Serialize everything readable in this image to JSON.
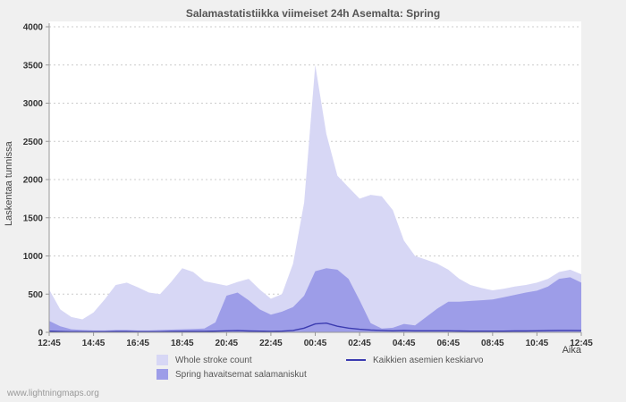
{
  "page": {
    "watermark": "www.lightningmaps.org"
  },
  "chart_data": {
    "type": "area",
    "title": "Salamastatistiikka viimeiset 24h Asemalta: Spring",
    "xlabel": "Aika",
    "ylabel": "Laskentaa tunnissa",
    "ylim": [
      0,
      4000
    ],
    "y_ticks": [
      0,
      500,
      1000,
      1500,
      2000,
      2500,
      3000,
      3500,
      4000
    ],
    "grid": "horizontal-dashed",
    "legend_position": "bottom",
    "x": [
      0,
      0.5,
      1,
      1.5,
      2,
      2.5,
      3,
      3.5,
      4,
      4.5,
      5,
      5.5,
      6,
      6.5,
      7,
      7.5,
      8,
      8.5,
      9,
      9.5,
      10,
      10.5,
      11,
      11.5,
      12,
      12.5,
      13,
      13.5,
      14,
      14.5,
      15,
      15.5,
      16,
      16.5,
      17,
      17.5,
      18,
      18.5,
      19,
      19.5,
      20,
      20.5,
      21,
      21.5,
      22,
      22.5,
      23,
      23.5,
      24
    ],
    "x_tick_hours": [
      0,
      2,
      4,
      6,
      8,
      10,
      12,
      14,
      16,
      18,
      20,
      22,
      24
    ],
    "x_tick_labels": [
      "12:45",
      "14:45",
      "16:45",
      "18:45",
      "20:45",
      "22:45",
      "00:45",
      "02:45",
      "04:45",
      "06:45",
      "08:45",
      "10:45",
      "12:45"
    ],
    "colors": {
      "page_background": "#f0f0f0",
      "plot_background": "#ffffff",
      "grid": "#cccccc",
      "axis": "#999999",
      "text": "#555555"
    },
    "series": [
      {
        "id": "whole-stroke-count",
        "name": "Whole stroke count",
        "type": "area",
        "color": "#d7d7f5",
        "values": [
          560,
          300,
          200,
          170,
          260,
          430,
          620,
          650,
          590,
          520,
          500,
          660,
          840,
          790,
          670,
          640,
          610,
          660,
          700,
          560,
          440,
          500,
          900,
          1700,
          3500,
          2600,
          2050,
          1900,
          1750,
          1800,
          1780,
          1600,
          1200,
          1000,
          950,
          900,
          820,
          700,
          620,
          580,
          550,
          570,
          600,
          620,
          650,
          700,
          790,
          820,
          760
        ]
      },
      {
        "id": "spring-detected-strokes",
        "name": "Spring havaitsemat salamaniskut",
        "type": "area",
        "color": "#9d9de8",
        "values": [
          150,
          80,
          40,
          30,
          25,
          25,
          30,
          30,
          25,
          25,
          30,
          35,
          40,
          45,
          50,
          130,
          480,
          520,
          420,
          300,
          230,
          270,
          330,
          480,
          800,
          840,
          820,
          700,
          420,
          120,
          50,
          60,
          110,
          90,
          200,
          310,
          400,
          400,
          410,
          420,
          430,
          460,
          490,
          520,
          545,
          600,
          700,
          720,
          650
        ]
      },
      {
        "id": "all-stations-average",
        "name": "Kaikkien asemien keskiarvo",
        "type": "line",
        "color": "#3b3bb0",
        "values": [
          15,
          10,
          8,
          8,
          8,
          8,
          10,
          10,
          8,
          8,
          8,
          10,
          12,
          12,
          12,
          15,
          20,
          22,
          18,
          15,
          12,
          15,
          25,
          55,
          110,
          120,
          80,
          55,
          40,
          30,
          25,
          20,
          25,
          20,
          20,
          20,
          20,
          18,
          15,
          15,
          15,
          15,
          18,
          18,
          20,
          22,
          25,
          25,
          22
        ]
      }
    ]
  }
}
